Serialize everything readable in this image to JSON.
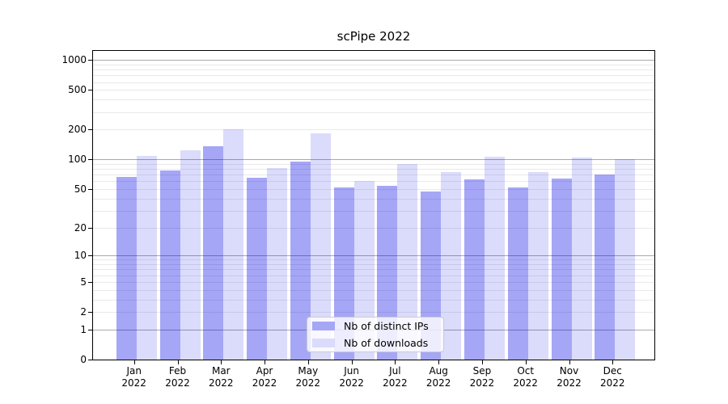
{
  "title": "scPipe 2022",
  "chart_data": {
    "type": "bar",
    "title": "scPipe 2022",
    "categories": [
      "Jan 2022",
      "Feb 2022",
      "Mar 2022",
      "Apr 2022",
      "May 2022",
      "Jun 2022",
      "Jul 2022",
      "Aug 2022",
      "Sep 2022",
      "Oct 2022",
      "Nov 2022",
      "Dec 2022"
    ],
    "series": [
      {
        "name": "Nb of distinct IPs",
        "color": "#0000e6",
        "alpha": 0.35,
        "perceived_color": "#a6a6f6",
        "values": [
          66,
          78,
          137,
          65,
          95,
          52,
          54,
          47,
          63,
          52,
          64,
          70
        ]
      },
      {
        "name": "Nb of downloads",
        "color": "#0000e6",
        "alpha": 0.14,
        "perceived_color": "#dbdbfb",
        "values": [
          108,
          125,
          202,
          82,
          183,
          60,
          90,
          74,
          106,
          75,
          105,
          100
        ]
      }
    ],
    "y_scale": "log1p",
    "y_tick_values": [
      1000,
      500,
      200,
      100,
      50,
      20,
      10,
      5,
      2,
      1,
      0
    ],
    "ylim": [
      0,
      1230
    ],
    "grid": true,
    "grid_major_color": "#a9a9a9",
    "grid_minor_color": "#e9e9e9",
    "legend_position": "lower-center",
    "xlabel": "",
    "ylabel": ""
  },
  "legend": {
    "items": [
      "Nb of distinct IPs",
      "Nb of downloads"
    ]
  }
}
